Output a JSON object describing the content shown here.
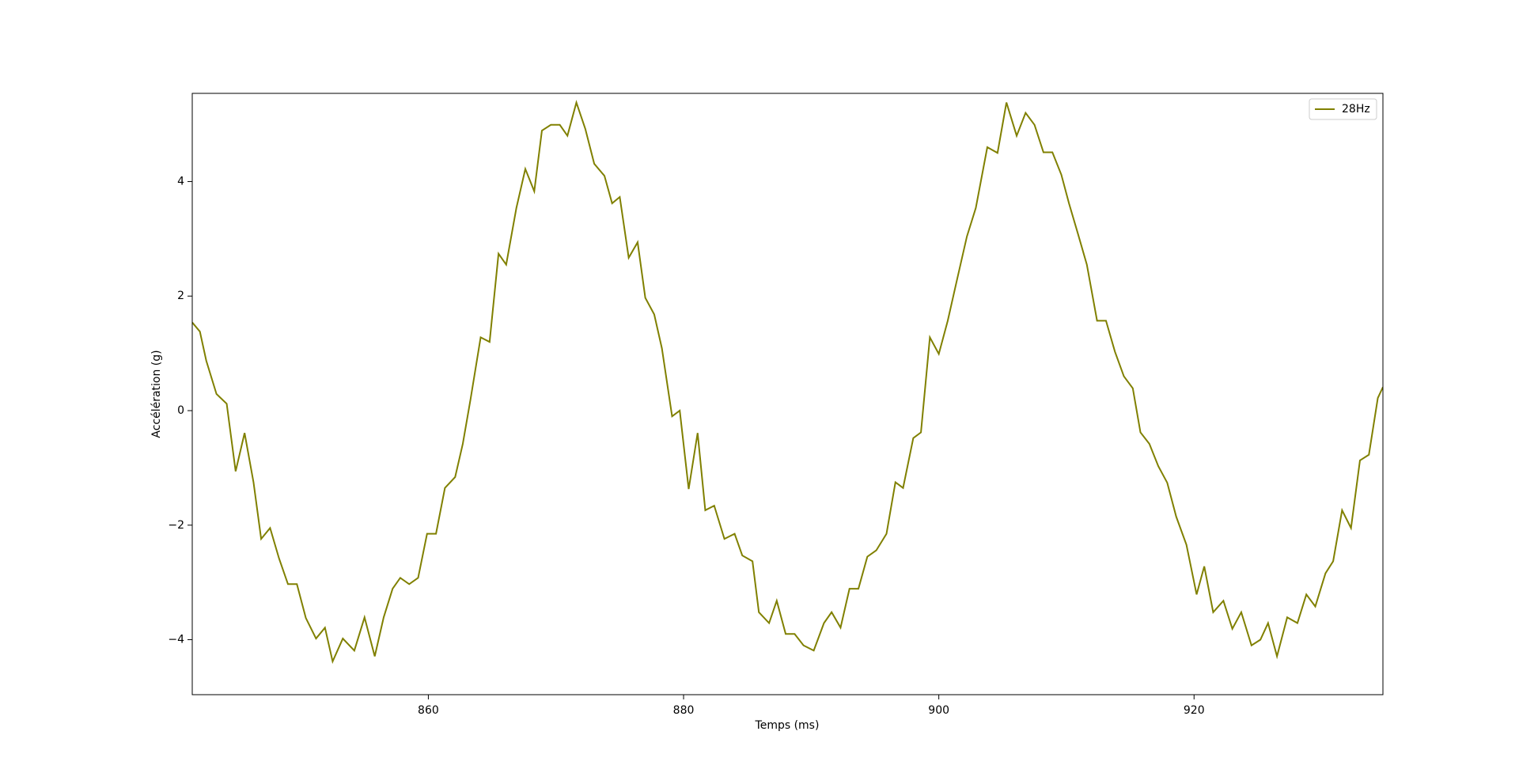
{
  "chart_data": {
    "type": "line",
    "x_label": "Temps (ms)",
    "y_label": "Accélération (g)",
    "x": [
      841.5,
      842.1,
      842.6,
      843.4,
      844.2,
      844.9,
      845.6,
      846.3,
      846.9,
      847.6,
      848.3,
      849.0,
      849.7,
      850.4,
      851.2,
      851.9,
      852.5,
      853.3,
      854.2,
      855.0,
      855.8,
      856.5,
      857.2,
      857.8,
      858.5,
      859.2,
      859.9,
      860.6,
      861.3,
      862.1,
      862.7,
      863.3,
      864.1,
      864.8,
      865.5,
      866.1,
      866.9,
      867.6,
      868.3,
      868.9,
      869.6,
      870.3,
      870.9,
      871.6,
      872.3,
      873.0,
      873.8,
      874.4,
      875.0,
      875.7,
      876.4,
      877.0,
      877.7,
      878.3,
      879.1,
      879.7,
      880.4,
      881.1,
      881.7,
      882.4,
      883.2,
      884.0,
      884.6,
      885.4,
      885.9,
      886.7,
      887.3,
      888.0,
      888.7,
      889.4,
      890.2,
      891.0,
      891.6,
      892.3,
      893.0,
      893.7,
      894.4,
      895.1,
      895.9,
      896.6,
      897.2,
      898.0,
      898.6,
      899.3,
      900.0,
      900.7,
      901.4,
      902.2,
      902.9,
      903.8,
      904.6,
      905.3,
      906.1,
      906.8,
      907.5,
      908.2,
      908.9,
      909.6,
      910.2,
      910.9,
      911.6,
      912.4,
      913.1,
      913.8,
      914.5,
      915.2,
      915.8,
      916.5,
      917.2,
      917.9,
      918.6,
      919.4,
      920.2,
      920.8,
      921.5,
      922.3,
      923.0,
      923.7,
      924.5,
      925.2,
      925.8,
      926.5,
      927.3,
      928.1,
      928.8,
      929.5,
      930.3,
      930.9,
      931.6,
      932.3,
      933.0,
      933.7,
      934.4,
      934.8
    ],
    "series": [
      {
        "name": "28Hz",
        "color": "#808000",
        "values": [
          1.54,
          1.38,
          0.87,
          0.29,
          0.12,
          -1.06,
          -0.39,
          -1.25,
          -2.24,
          -2.05,
          -2.58,
          -3.03,
          -3.03,
          -3.62,
          -3.98,
          -3.79,
          -4.38,
          -3.98,
          -4.19,
          -3.61,
          -4.29,
          -3.61,
          -3.11,
          -2.92,
          -3.03,
          -2.92,
          -2.15,
          -2.15,
          -1.35,
          -1.16,
          -0.58,
          0.19,
          1.28,
          1.2,
          2.74,
          2.55,
          3.54,
          4.22,
          3.83,
          4.89,
          4.99,
          4.99,
          4.8,
          5.38,
          4.92,
          4.31,
          4.1,
          3.62,
          3.73,
          2.67,
          2.94,
          1.97,
          1.68,
          1.09,
          -0.1,
          0,
          -1.37,
          -0.39,
          -1.74,
          -1.66,
          -2.24,
          -2.15,
          -2.53,
          -2.63,
          -3.52,
          -3.71,
          -3.32,
          -3.9,
          -3.9,
          -4.1,
          -4.19,
          -3.71,
          -3.52,
          -3.79,
          -3.11,
          -3.11,
          -2.55,
          -2.44,
          -2.15,
          -1.25,
          -1.35,
          -0.48,
          -0.38,
          1.28,
          0.99,
          1.57,
          2.26,
          3.04,
          3.54,
          4.6,
          4.5,
          5.38,
          4.8,
          5.2,
          4.99,
          4.51,
          4.51,
          4.12,
          3.62,
          3.09,
          2.55,
          1.57,
          1.57,
          1.03,
          0.6,
          0.39,
          -0.38,
          -0.58,
          -0.97,
          -1.26,
          -1.85,
          -2.34,
          -3.21,
          -2.72,
          -3.52,
          -3.32,
          -3.81,
          -3.52,
          -4.1,
          -4.0,
          -3.71,
          -4.29,
          -3.61,
          -3.71,
          -3.21,
          -3.42,
          -2.84,
          -2.63,
          -1.74,
          -2.05,
          -0.87,
          -0.77,
          0.22,
          0.41
        ]
      }
    ],
    "xlim": [
      841.5,
      934.8
    ],
    "xticks": [
      860,
      880,
      900,
      920
    ],
    "ylim": [
      -4.96,
      5.54
    ],
    "yticks": [
      {
        "value": -4,
        "label": "−4"
      },
      {
        "value": -2,
        "label": "−2"
      },
      0,
      2,
      4
    ],
    "legend": "upper right",
    "grid": false
  }
}
